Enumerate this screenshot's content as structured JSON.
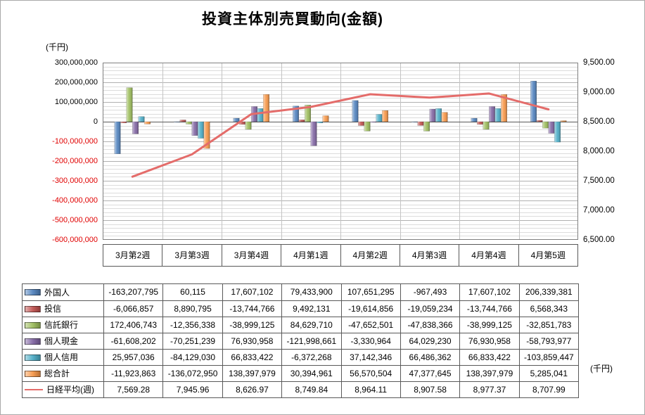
{
  "title": "投資主体別売買動向(金額)",
  "left_axis": {
    "unit": "(千円)",
    "ticks": [
      "300,000,000",
      "200,000,000",
      "100,000,000",
      "0",
      "-100,000,000",
      "-200,000,000",
      "-300,000,000",
      "-400,000,000",
      "-500,000,000",
      "-600,000,000"
    ]
  },
  "right_axis": {
    "unit": "(千円)",
    "ticks": [
      "9,500.00",
      "9,000.00",
      "8,500.00",
      "8,000.00",
      "7,500.00",
      "7,000.00",
      "6,500.00"
    ]
  },
  "chart_data": {
    "type": "bar",
    "subtype": "clustered bars with overlaid line on secondary axis",
    "title": "投資主体別売買動向(金額)",
    "categories": [
      "3月第2週",
      "3月第3週",
      "3月第4週",
      "4月第1週",
      "4月第2週",
      "4月第3週",
      "4月第4週",
      "4月第5週"
    ],
    "left_axis_range": {
      "min": -600000000,
      "max": 300000000,
      "major_step": 100000000,
      "minor_step": 20000000,
      "unit": "(千円)"
    },
    "right_axis_range": {
      "min": 6500,
      "max": 9500,
      "step": 500,
      "unit": "(千円)"
    },
    "grid": "on",
    "legend_position": "table-left",
    "series": [
      {
        "name": "外国人",
        "color": "#4F81BD",
        "values": [
          -163207795,
          60115,
          17607102,
          79433900,
          107651295,
          -967493,
          17607102,
          206339381
        ]
      },
      {
        "name": "投信",
        "color": "#C0504D",
        "values": [
          -6066857,
          8890795,
          -13744766,
          9492131,
          -19614856,
          -19059234,
          -13744766,
          6568343
        ]
      },
      {
        "name": "信託銀行",
        "color": "#9BBB59",
        "values": [
          172406743,
          -12356338,
          -38999125,
          84629710,
          -47652501,
          -47838366,
          -38999125,
          -32851783
        ]
      },
      {
        "name": "個人現金",
        "color": "#8064A2",
        "values": [
          -61608202,
          -70251239,
          76930958,
          -121998661,
          -3330964,
          64029230,
          76930958,
          -58793977
        ]
      },
      {
        "name": "個人信用",
        "color": "#4BACC6",
        "values": [
          25957036,
          -84129030,
          66833422,
          -6372268,
          37142346,
          66486362,
          66833422,
          -103859447
        ]
      },
      {
        "name": "総合計",
        "color": "#F79646",
        "values": [
          -11923863,
          -136072950,
          138397979,
          30394961,
          56570504,
          47377645,
          138397979,
          5285041
        ]
      }
    ],
    "line_series": {
      "name": "日経平均(週)",
      "color": "#E46C6A",
      "axis": "right",
      "values": [
        7569.28,
        7945.96,
        8626.97,
        8749.84,
        8964.11,
        8907.58,
        8977.37,
        8707.99
      ]
    }
  },
  "table": {
    "rows": [
      {
        "label": "外国人",
        "type": "bar",
        "color": "#4F81BD",
        "values": [
          "-163,207,795",
          "60,115",
          "17,607,102",
          "79,433,900",
          "107,651,295",
          "-967,493",
          "17,607,102",
          "206,339,381"
        ]
      },
      {
        "label": "投信",
        "type": "bar",
        "color": "#C0504D",
        "values": [
          "-6,066,857",
          "8,890,795",
          "-13,744,766",
          "9,492,131",
          "-19,614,856",
          "-19,059,234",
          "-13,744,766",
          "6,568,343"
        ]
      },
      {
        "label": "信託銀行",
        "type": "bar",
        "color": "#9BBB59",
        "values": [
          "172,406,743",
          "-12,356,338",
          "-38,999,125",
          "84,629,710",
          "-47,652,501",
          "-47,838,366",
          "-38,999,125",
          "-32,851,783"
        ]
      },
      {
        "label": "個人現金",
        "type": "bar",
        "color": "#8064A2",
        "values": [
          "-61,608,202",
          "-70,251,239",
          "76,930,958",
          "-121,998,661",
          "-3,330,964",
          "64,029,230",
          "76,930,958",
          "-58,793,977"
        ]
      },
      {
        "label": "個人信用",
        "type": "bar",
        "color": "#4BACC6",
        "values": [
          "25,957,036",
          "-84,129,030",
          "66,833,422",
          "-6,372,268",
          "37,142,346",
          "66,486,362",
          "66,833,422",
          "-103,859,447"
        ]
      },
      {
        "label": "総合計",
        "type": "bar",
        "color": "#F79646",
        "values": [
          "-11,923,863",
          "-136,072,950",
          "138,397,979",
          "30,394,961",
          "56,570,504",
          "47,377,645",
          "138,397,979",
          "5,285,041"
        ]
      },
      {
        "label": "日経平均(週)",
        "type": "line",
        "color": "#E46C6A",
        "values": [
          "7,569.28",
          "7,945.96",
          "8,626.97",
          "8,749.84",
          "8,964.11",
          "8,907.58",
          "8,977.37",
          "8,707.99"
        ]
      }
    ]
  }
}
